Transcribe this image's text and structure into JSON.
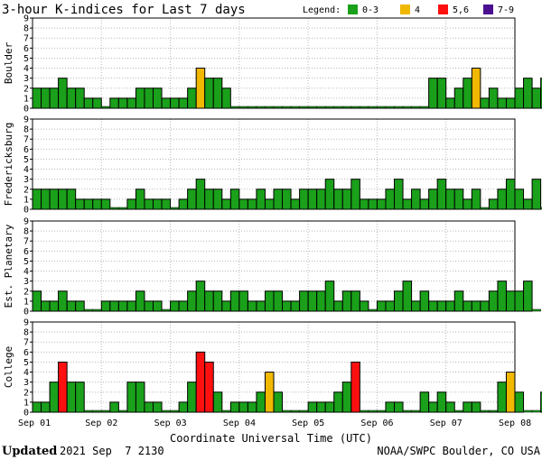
{
  "title": "3-hour K-indices for Last 7 days",
  "legend": {
    "label": "Legend:",
    "items": [
      {
        "label": "0-3",
        "color": "#1aa01a"
      },
      {
        "label": "4",
        "color": "#f0b800"
      },
      {
        "label": "5,6",
        "color": "#ff1010"
      },
      {
        "label": "7-9",
        "color": "#4a1090"
      }
    ]
  },
  "footer": {
    "updated_label": "Updated",
    "updated_value": "2021 Sep  7 2130",
    "source": "NOAA/SWPC Boulder, CO USA"
  },
  "chart_data": {
    "type": "bar",
    "xlabel": "Coordinate Universal Time (UTC)",
    "x_ticks": [
      "Sep 01",
      "Sep 02",
      "Sep 03",
      "Sep 04",
      "Sep 05",
      "Sep 06",
      "Sep 07",
      "Sep 08"
    ],
    "y_ticks": [
      "0",
      "1",
      "2",
      "3",
      "4",
      "5",
      "6",
      "7",
      "8",
      "9"
    ],
    "ylim": [
      0,
      9
    ],
    "intervals_per_day": 8,
    "days": 7,
    "color_scale": [
      {
        "range": [
          0,
          3
        ],
        "color": "#1aa01a"
      },
      {
        "range": [
          4,
          4
        ],
        "color": "#f0b800"
      },
      {
        "range": [
          5,
          6
        ],
        "color": "#ff1010"
      },
      {
        "range": [
          7,
          9
        ],
        "color": "#4a1090"
      }
    ],
    "panels": [
      {
        "name": "Boulder",
        "values": [
          2,
          2,
          2,
          3,
          2,
          2,
          1,
          1,
          0,
          1,
          1,
          1,
          2,
          2,
          2,
          1,
          1,
          1,
          2,
          4,
          3,
          3,
          2,
          0,
          0,
          0,
          0,
          0,
          0,
          0,
          0,
          0,
          0,
          0,
          0,
          0,
          0,
          0,
          0,
          0,
          0,
          0,
          0,
          0,
          0,
          0,
          3,
          3,
          1,
          2,
          3,
          4,
          1,
          2,
          1,
          1,
          2,
          3,
          2,
          3,
          2,
          0
        ]
      },
      {
        "name": "Fredericksburg",
        "values": [
          2,
          2,
          2,
          2,
          2,
          1,
          1,
          1,
          1,
          0,
          0,
          1,
          2,
          1,
          1,
          1,
          0,
          1,
          2,
          3,
          2,
          2,
          1,
          2,
          1,
          1,
          2,
          1,
          2,
          2,
          1,
          2,
          2,
          2,
          3,
          2,
          2,
          3,
          1,
          1,
          1,
          2,
          3,
          1,
          2,
          1,
          2,
          3,
          2,
          2,
          1,
          2,
          0,
          1,
          2,
          3,
          2,
          1,
          3,
          0
        ]
      },
      {
        "name": "Est. Planetary",
        "values": [
          2,
          1,
          1,
          2,
          1,
          1,
          0,
          0,
          1,
          1,
          1,
          1,
          2,
          1,
          1,
          0,
          1,
          1,
          2,
          3,
          2,
          2,
          1,
          2,
          2,
          1,
          1,
          2,
          2,
          1,
          1,
          2,
          2,
          2,
          3,
          1,
          2,
          2,
          1,
          0,
          1,
          1,
          2,
          3,
          1,
          2,
          1,
          1,
          1,
          2,
          1,
          1,
          1,
          2,
          3,
          2,
          2,
          3,
          0
        ]
      },
      {
        "name": "College",
        "values": [
          1,
          1,
          3,
          5,
          3,
          3,
          0,
          0,
          0,
          1,
          0,
          3,
          3,
          1,
          1,
          0,
          0,
          1,
          3,
          6,
          5,
          2,
          0,
          1,
          1,
          1,
          2,
          4,
          2,
          0,
          0,
          0,
          1,
          1,
          1,
          2,
          3,
          5,
          0,
          0,
          0,
          1,
          1,
          0,
          0,
          2,
          1,
          2,
          1,
          0,
          1,
          1,
          0,
          0,
          3,
          4,
          2,
          0,
          0,
          2,
          0
        ]
      }
    ]
  }
}
